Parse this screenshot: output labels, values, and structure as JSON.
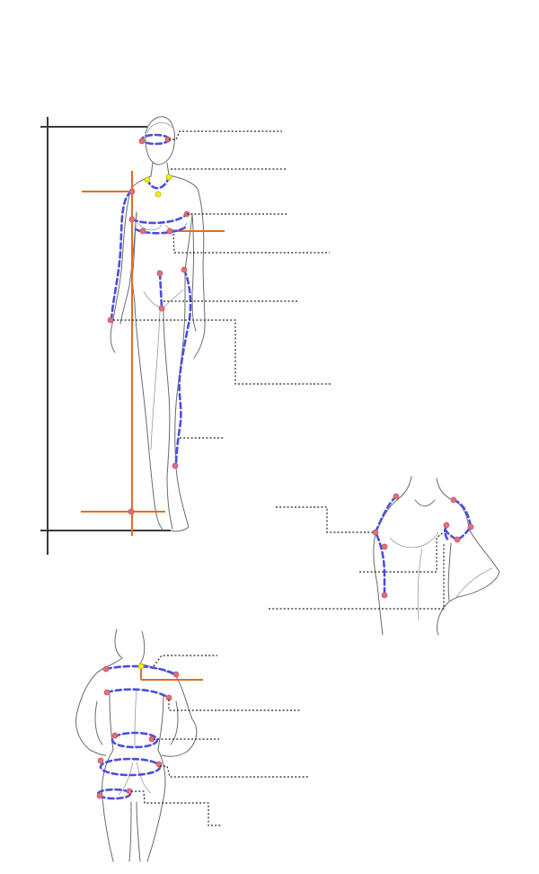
{
  "figures": [
    {
      "id": "front-full-body",
      "view": "front"
    },
    {
      "id": "shoulder-arm-closeup",
      "view": "three-quarter"
    },
    {
      "id": "back-torso",
      "view": "back"
    }
  ],
  "colors": {
    "measurement_line": "#4d4de0",
    "reference_line": "#e07020",
    "landmark_point": "#e0707a",
    "neck_point": "#f2ee1c",
    "frame": "#3a3a3a",
    "leader_line": "#222222"
  },
  "leader_lines": [
    {
      "id": "head-circumference"
    },
    {
      "id": "neck-point"
    },
    {
      "id": "bust"
    },
    {
      "id": "under-bust"
    },
    {
      "id": "crotch"
    },
    {
      "id": "arm-length"
    },
    {
      "id": "leg-side-length"
    },
    {
      "id": "shoulder-arm"
    },
    {
      "id": "armhole"
    },
    {
      "id": "bicep"
    },
    {
      "id": "back-neck"
    },
    {
      "id": "back-width"
    },
    {
      "id": "waist-back"
    },
    {
      "id": "hip-back"
    },
    {
      "id": "thigh-back"
    }
  ]
}
